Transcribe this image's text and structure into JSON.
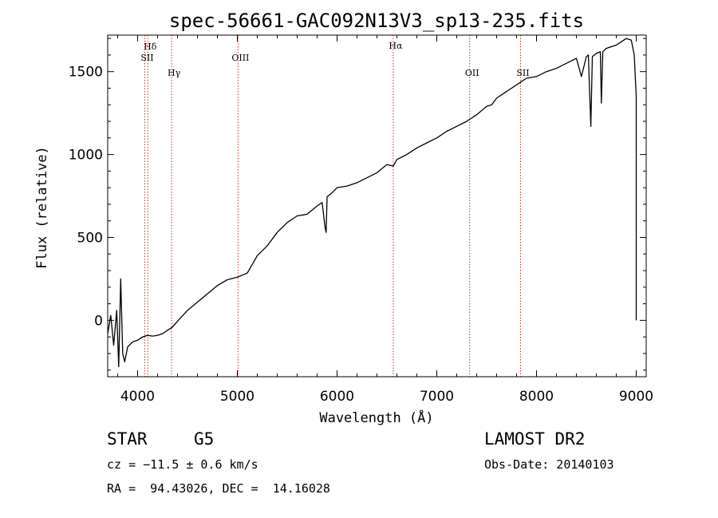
{
  "chart_data": {
    "type": "line",
    "title": "spec-56661-GAC092N13V3_sp13-235.fits",
    "xlabel": "Wavelength (Å)",
    "ylabel": "Flux (relative)",
    "xlim": [
      3700,
      9100
    ],
    "ylim": [
      -340,
      1720
    ],
    "x_ticks": [
      4000,
      5000,
      6000,
      7000,
      8000,
      9000
    ],
    "y_ticks": [
      0,
      500,
      1000,
      1500
    ],
    "grid": false,
    "series": [
      {
        "color": "#000000",
        "x": [
          3700,
          3730,
          3760,
          3790,
          3810,
          3830,
          3850,
          3870,
          3900,
          3950,
          4000,
          4050,
          4100,
          4150,
          4200,
          4250,
          4300,
          4350,
          4400,
          4500,
          4600,
          4700,
          4800,
          4900,
          5000,
          5100,
          5200,
          5300,
          5400,
          5500,
          5600,
          5700,
          5800,
          5850,
          5880,
          5890,
          5900,
          5950,
          6000,
          6100,
          6200,
          6300,
          6400,
          6500,
          6563,
          6600,
          6700,
          6800,
          6900,
          7000,
          7100,
          7200,
          7300,
          7400,
          7500,
          7550,
          7600,
          7700,
          7800,
          7900,
          8000,
          8100,
          8200,
          8300,
          8400,
          8450,
          8500,
          8520,
          8545,
          8560,
          8580,
          8600,
          8640,
          8650,
          8665,
          8700,
          8750,
          8800,
          8850,
          8900,
          8950,
          8980,
          9000,
          9000
        ],
        "values": [
          -80,
          30,
          -150,
          60,
          -280,
          250,
          -200,
          -250,
          -160,
          -130,
          -120,
          -100,
          -90,
          -95,
          -90,
          -80,
          -60,
          -40,
          -5,
          60,
          110,
          160,
          210,
          245,
          260,
          285,
          390,
          450,
          530,
          590,
          630,
          640,
          690,
          710,
          560,
          530,
          745,
          770,
          800,
          810,
          830,
          860,
          890,
          940,
          930,
          970,
          1000,
          1040,
          1070,
          1100,
          1140,
          1170,
          1200,
          1240,
          1290,
          1300,
          1340,
          1380,
          1420,
          1460,
          1470,
          1500,
          1520,
          1550,
          1580,
          1470,
          1590,
          1600,
          1170,
          1590,
          1600,
          1610,
          1620,
          1310,
          1620,
          1640,
          1650,
          1660,
          1680,
          1700,
          1690,
          1600,
          1350,
          0
        ]
      }
    ],
    "reference_lines": [
      {
        "label": "Hδ",
        "x": 4102
      },
      {
        "label": "SII",
        "x": 4072
      },
      {
        "label": "Hγ",
        "x": 4341
      },
      {
        "label": "OIII",
        "x": 5007
      },
      {
        "label": "Hα",
        "x": 6563
      },
      {
        "label": "OII",
        "x": 7330
      },
      {
        "label": "SII",
        "x": 7840
      }
    ],
    "reference_line_color": "#c0392b"
  },
  "info": {
    "object_type": "STAR",
    "subclass": "G5",
    "survey": "LAMOST DR2",
    "cz": "cz = −11.5 ± 0.6 km/s",
    "obs_date": "Obs-Date: 20140103",
    "coords": "RA =  94.43026, DEC =  14.16028"
  }
}
